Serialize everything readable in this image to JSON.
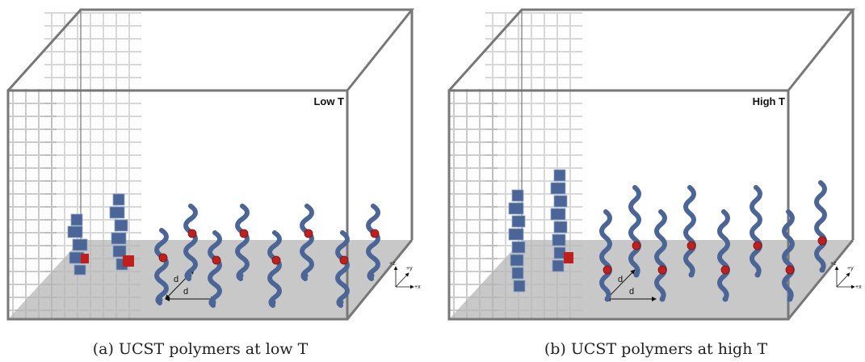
{
  "panels": [
    {
      "label": "Low T",
      "caption": "(a) UCST polymers at low T",
      "spacing_labels": [
        "d",
        "d"
      ],
      "axes": [
        "+z",
        "+y",
        "+x"
      ]
    },
    {
      "label": "High T",
      "caption": "(b) UCST polymers at high T",
      "spacing_labels": [
        "d",
        "d"
      ],
      "axes": [
        "+z",
        "+y",
        "+x"
      ]
    }
  ]
}
